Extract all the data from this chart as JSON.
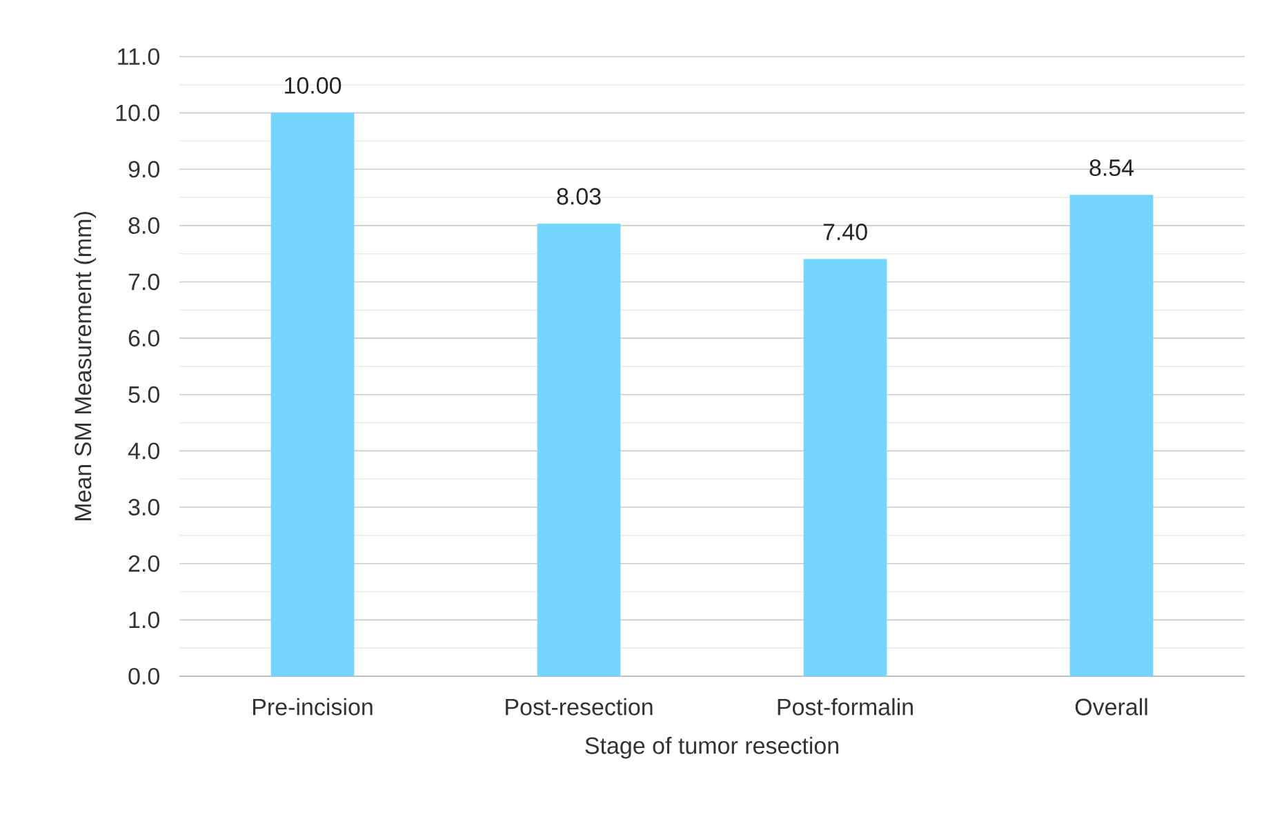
{
  "chart_data": {
    "type": "bar",
    "xlabel": "Stage of tumor resection",
    "ylabel": "Mean SM Measurement (mm)",
    "categories": [
      "Pre-incision",
      "Post-resection",
      "Post-formalin",
      "Overall"
    ],
    "values": [
      10.0,
      8.03,
      7.4,
      8.54
    ],
    "value_labels": [
      "10.00",
      "8.03",
      "7.40",
      "8.54"
    ],
    "color": "#75d5fd",
    "ylim": [
      0,
      11
    ],
    "yticks": [
      {
        "value": 0,
        "label": "0.0"
      },
      {
        "value": 1,
        "label": "1.0"
      },
      {
        "value": 2,
        "label": "2.0"
      },
      {
        "value": 3,
        "label": "3.0"
      },
      {
        "value": 4,
        "label": "4.0"
      },
      {
        "value": 5,
        "label": "5.0"
      },
      {
        "value": 6,
        "label": "6.0"
      },
      {
        "value": 7,
        "label": "7.0"
      },
      {
        "value": 8,
        "label": "8.0"
      },
      {
        "value": 9,
        "label": "9.0"
      },
      {
        "value": 10,
        "label": "10.0"
      },
      {
        "value": 11,
        "label": "11.0"
      }
    ],
    "grid": "y"
  }
}
